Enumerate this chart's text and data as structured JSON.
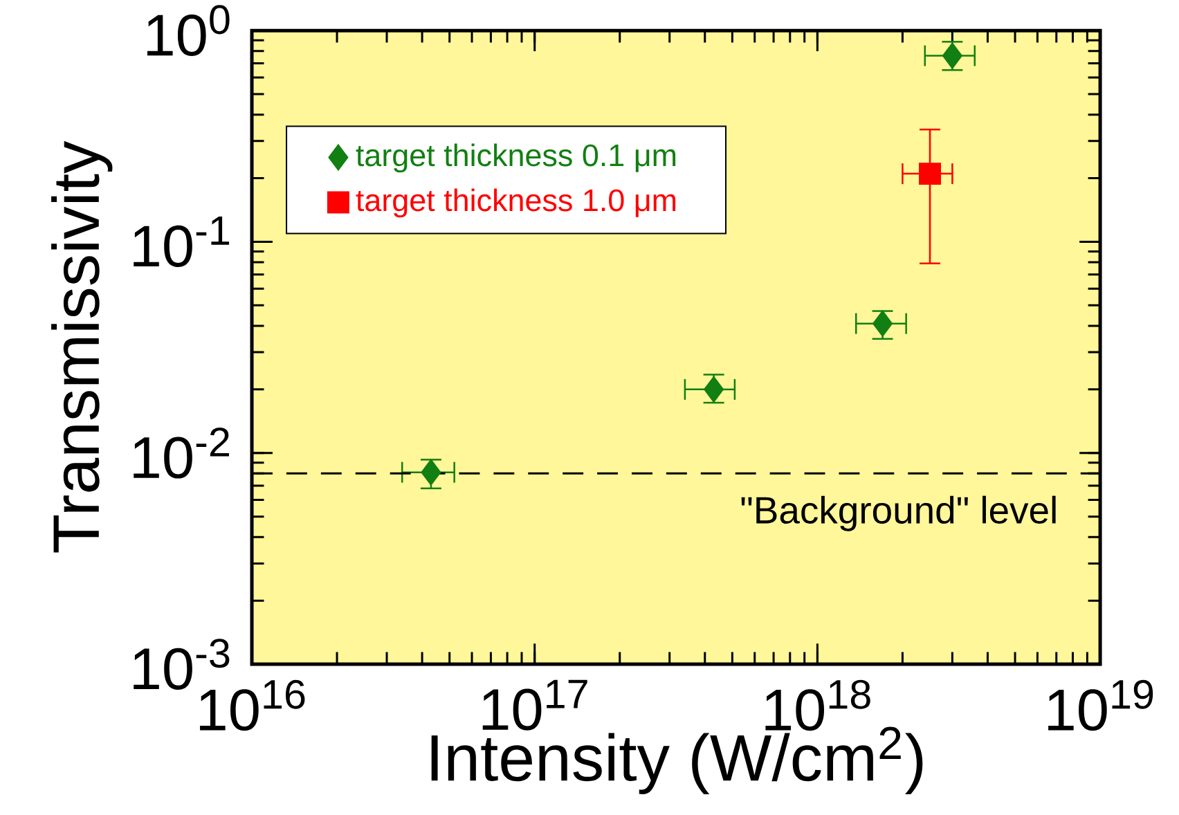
{
  "chart_data": {
    "type": "scatter",
    "xlabel": "Intensity  (W/cm$^{2}$)",
    "ylabel": "Transmissivity",
    "log": "xy",
    "xlim": [
      1e+16,
      1e+19
    ],
    "ylim": [
      0.001,
      1
    ],
    "xticks": [
      {
        "value": 1e+16,
        "label": "10$^{16}$"
      },
      {
        "value": 1e+17,
        "label": "10$^{17}$"
      },
      {
        "value": 1e+18,
        "label": "10$^{18}$"
      },
      {
        "value": 1e+19,
        "label": "10$^{19}$"
      }
    ],
    "yticks": [
      {
        "value": 0.001,
        "label": "10$^{-3}$"
      },
      {
        "value": 0.01,
        "label": "10$^{-2}$"
      },
      {
        "value": 0.1,
        "label": "10$^{-1}$"
      },
      {
        "value": 1,
        "label": "10$^{0}$"
      }
    ],
    "grid": false,
    "legend": "top left",
    "series": [
      {
        "name": "target  thickness  0.1  μm",
        "color": "#117f11",
        "marker": "diamond",
        "x": [
          4.3e+16,
          4.3e+17,
          1.7e+18,
          3e+18
        ],
        "values": [
          0.0081,
          0.02,
          0.041,
          0.76
        ],
        "errors": [
          [
            0.0068,
            0.0093
          ],
          [
            0.0173,
            0.0235
          ],
          [
            0.0347,
            0.047
          ],
          [
            0.65,
            0.885
          ]
        ],
        "xerrors": [
          [
            3.4e+16,
            5.2e+16
          ],
          [
            3.4e+17,
            5.1e+17
          ],
          [
            1.37e+18,
            2.06e+18
          ],
          [
            2.4e+18,
            3.6e+18
          ]
        ]
      },
      {
        "name": "target  thickness  1.0  μm",
        "color": "#ff0000",
        "marker": "square",
        "x": [
          2.5e+18
        ],
        "values": [
          0.21
        ],
        "errors": [
          [
            0.079,
            0.34
          ]
        ],
        "xerrors": [
          [
            2e+18,
            3e+18
          ]
        ]
      }
    ],
    "ref_lines": [
      {
        "axis": "y",
        "value": 0.008,
        "label": "\"Background\"  level",
        "line_style": "dashed",
        "color": "#000000"
      }
    ]
  }
}
